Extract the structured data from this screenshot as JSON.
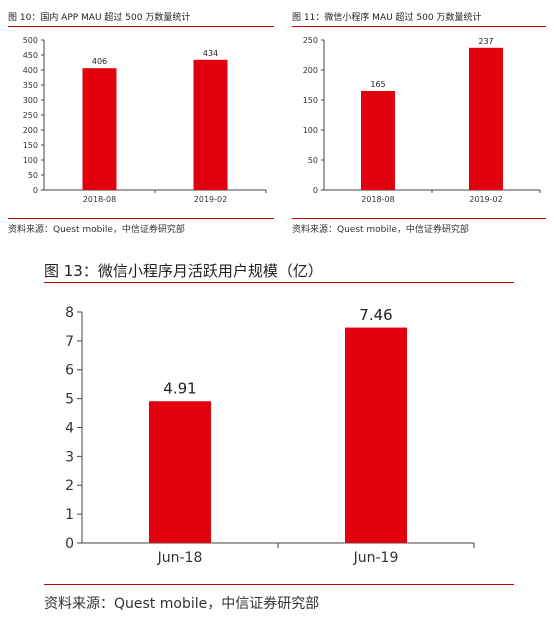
{
  "accent_color": "#c40000",
  "bar_color": "#e2000f",
  "chart_data": [
    {
      "type": "bar",
      "title": "图 10：国内 APP MAU 超过 500 万数量统计",
      "categories": [
        "2018-08",
        "2019-02"
      ],
      "values": [
        406,
        434
      ],
      "value_labels": [
        "406",
        "434"
      ],
      "ylim": [
        0,
        500
      ],
      "yticks": [
        0,
        50,
        100,
        150,
        200,
        250,
        300,
        350,
        400,
        450,
        500
      ],
      "xlabel": "",
      "ylabel": "",
      "grid": false,
      "source": "资料来源：Quest mobile，中信证券研究部"
    },
    {
      "type": "bar",
      "title": "图 11：微信小程序 MAU 超过 500 万数量统计",
      "categories": [
        "2018-08",
        "2019-02"
      ],
      "values": [
        165,
        237
      ],
      "value_labels": [
        "165",
        "237"
      ],
      "ylim": [
        0,
        250
      ],
      "yticks": [
        0,
        50,
        100,
        150,
        200,
        250
      ],
      "xlabel": "",
      "ylabel": "",
      "grid": false,
      "source": "资料来源：Quest mobile，中信证券研究部"
    },
    {
      "type": "bar",
      "title": "图 13：微信小程序月活跃用户规模（亿）",
      "categories": [
        "Jun-18",
        "Jun-19"
      ],
      "values": [
        4.91,
        7.46
      ],
      "value_labels": [
        "4.91",
        "7.46"
      ],
      "ylim": [
        0,
        8
      ],
      "yticks": [
        0,
        1,
        2,
        3,
        4,
        5,
        6,
        7,
        8
      ],
      "xlabel": "",
      "ylabel": "",
      "grid": false,
      "source": "资料来源：Quest mobile，中信证券研究部"
    }
  ]
}
